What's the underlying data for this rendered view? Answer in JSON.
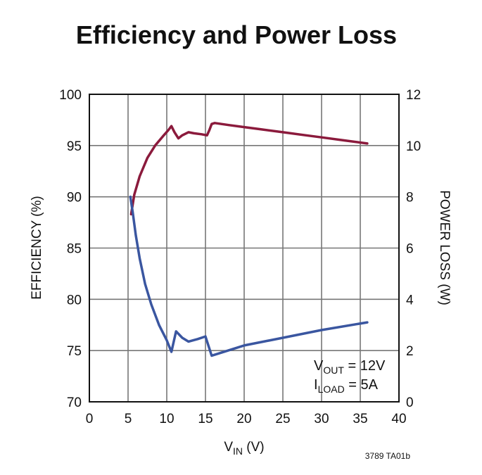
{
  "chart_data": {
    "type": "line",
    "title": "Efficiency and Power Loss",
    "xlabel": {
      "main": "V",
      "sub": "IN",
      "suffix": " (V)"
    },
    "ylabel_left": "EFFICIENCY (%)",
    "ylabel_right": "POWER LOSS (W)",
    "xlim": [
      0,
      40
    ],
    "ylim_left": [
      70,
      100
    ],
    "ylim_right": [
      0,
      12
    ],
    "x_ticks": [
      "0",
      "5",
      "10",
      "15",
      "20",
      "25",
      "30",
      "35",
      "40"
    ],
    "y_left_ticks": [
      "70",
      "75",
      "80",
      "85",
      "90",
      "95",
      "100"
    ],
    "y_right_ticks": [
      "0",
      "2",
      "4",
      "6",
      "8",
      "10",
      "12"
    ],
    "grid": true,
    "series": [
      {
        "name": "Efficiency",
        "axis": "left",
        "color": "#8b1a3c",
        "x": [
          5.4,
          5.8,
          6.5,
          7.5,
          8.5,
          9.5,
          10.2,
          10.6,
          11.0,
          11.5,
          12.0,
          12.8,
          13.5,
          14.5,
          15.2,
          15.5,
          15.8,
          16.2,
          18,
          20,
          22,
          25,
          28,
          30,
          33,
          35.9
        ],
        "y": [
          88.3,
          90.2,
          92.0,
          93.8,
          95.0,
          95.9,
          96.5,
          96.9,
          96.3,
          95.7,
          96.0,
          96.3,
          96.2,
          96.1,
          96.0,
          96.5,
          97.1,
          97.2,
          97.0,
          96.8,
          96.6,
          96.3,
          96.0,
          95.8,
          95.5,
          95.2
        ]
      },
      {
        "name": "Power Loss",
        "axis": "right",
        "color": "#3a56a0",
        "x": [
          5.3,
          5.6,
          6.0,
          6.5,
          7.2,
          8.0,
          9.0,
          10.0,
          10.6,
          11.2,
          12.0,
          12.8,
          14.0,
          15.0,
          15.8,
          20,
          25,
          30,
          35.9
        ],
        "y": [
          8.0,
          7.4,
          6.5,
          5.6,
          4.6,
          3.8,
          3.0,
          2.4,
          1.95,
          2.75,
          2.5,
          2.35,
          2.45,
          2.55,
          1.8,
          2.2,
          2.5,
          2.8,
          3.1
        ]
      }
    ],
    "annotation": {
      "line1": {
        "main": "V",
        "sub": "OUT",
        "suffix": " = 12V"
      },
      "line2": {
        "main": "I",
        "sub": "LOAD",
        "suffix": " = 5A"
      }
    },
    "figure_id": "3789 TA01b"
  }
}
